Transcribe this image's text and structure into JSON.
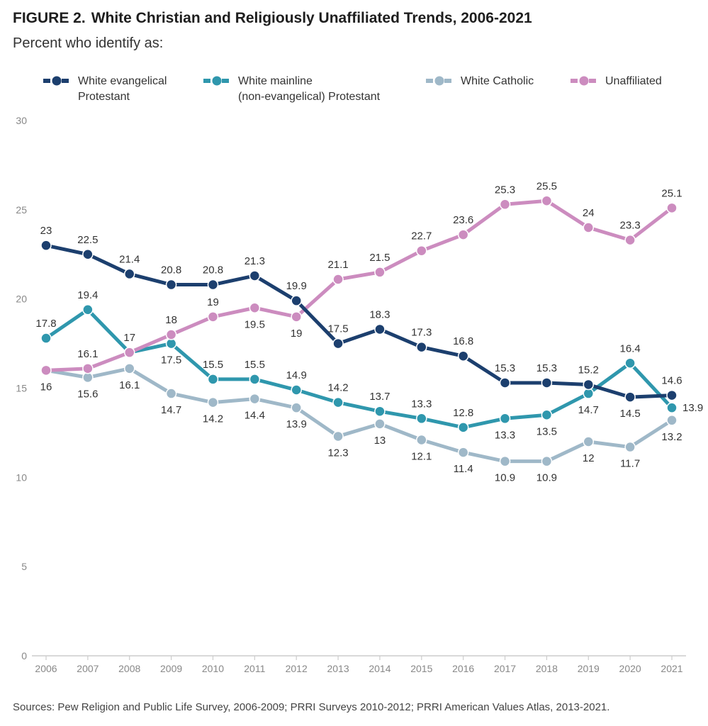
{
  "header": {
    "figure_label": "FIGURE 2.",
    "title": "White Christian and Religiously Unaffiliated Trends, 2006-2021",
    "subtitle": "Percent who identify as:"
  },
  "legend": [
    {
      "label": "White evangelical\nProtestant",
      "color": "#1c3f6e"
    },
    {
      "label": "White mainline\n(non-evangelical) Protestant",
      "color": "#2f97ad"
    },
    {
      "label": "White Catholic",
      "color": "#9fb8c8"
    },
    {
      "label": "Unaffiliated",
      "color": "#cc8cbf"
    }
  ],
  "footer": {
    "source": "Sources: Pew Religion and Public Life Survey, 2006-2009; PRRI Surveys 2010-2012; PRRI American Values Atlas, 2013-2021."
  },
  "chart_data": {
    "type": "line",
    "title": "White Christian and Religiously Unaffiliated Trends, 2006-2021",
    "subtitle": "Percent who identify as:",
    "x": [
      "2006",
      "2007",
      "2008",
      "2009",
      "2010",
      "2011",
      "2012",
      "2013",
      "2014",
      "2015",
      "2016",
      "2017",
      "2018",
      "2019",
      "2020",
      "2021"
    ],
    "ylim": [
      0,
      30
    ],
    "yticks": [
      0,
      5,
      10,
      15,
      20,
      25,
      30
    ],
    "grid": false,
    "legend_position": "top",
    "series": [
      {
        "name": "White evangelical Protestant",
        "color": "#1c3f6e",
        "values": [
          23,
          22.5,
          21.4,
          20.8,
          20.8,
          21.3,
          19.9,
          17.5,
          18.3,
          17.3,
          16.8,
          15.3,
          15.3,
          15.2,
          14.5,
          14.6
        ],
        "labels": [
          "23",
          "22.5",
          "21.4",
          "20.8",
          "20.8",
          "21.3",
          "19.9",
          "17.5",
          "18.3",
          "17.3",
          "16.8",
          "15.3",
          "15.3",
          "15.2",
          "14.5",
          "14.6"
        ]
      },
      {
        "name": "White mainline (non-evangelical) Protestant",
        "color": "#2f97ad",
        "values": [
          17.8,
          19.4,
          17,
          17.5,
          15.5,
          15.5,
          14.9,
          14.2,
          13.7,
          13.3,
          12.8,
          13.3,
          13.5,
          14.7,
          16.4,
          13.9
        ],
        "labels": [
          "17.8",
          "19.4",
          "",
          "17.5",
          "15.5",
          "15.5",
          "14.9",
          "14.2",
          "13.7",
          "13.3",
          "12.8",
          "13.3",
          "13.5",
          "14.7",
          "16.4",
          "13.9"
        ]
      },
      {
        "name": "White Catholic",
        "color": "#9fb8c8",
        "values": [
          16,
          15.6,
          16.1,
          14.7,
          14.2,
          14.4,
          13.9,
          12.3,
          13,
          12.1,
          11.4,
          10.9,
          10.9,
          12,
          11.7,
          13.2
        ],
        "labels": [
          "16",
          "15.6",
          "16.1",
          "14.7",
          "14.2",
          "14.4",
          "13.9",
          "12.3",
          "13",
          "12.1",
          "11.4",
          "10.9",
          "10.9",
          "12",
          "11.7",
          "13.2"
        ]
      },
      {
        "name": "Unaffiliated",
        "color": "#cc8cbf",
        "values": [
          16,
          16.1,
          17,
          18,
          19,
          19.5,
          19,
          21.1,
          21.5,
          22.7,
          23.6,
          25.3,
          25.5,
          24,
          23.3,
          25.1
        ],
        "labels": [
          "",
          "16.1",
          "17",
          "18",
          "19",
          "19.5",
          "19",
          "21.1",
          "21.5",
          "22.7",
          "23.6",
          "25.3",
          "25.5",
          "24",
          "23.3",
          "25.1"
        ]
      }
    ]
  }
}
